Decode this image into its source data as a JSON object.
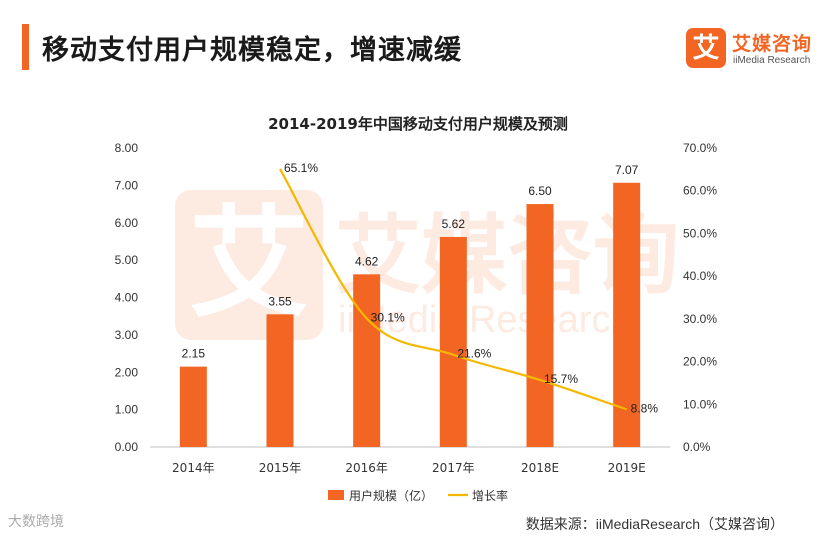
{
  "header": {
    "title": "移动支付用户规模稳定，增速减缓",
    "logo_mark": "艾",
    "logo_cn": "艾媒咨询",
    "logo_en": "iiMedia Research"
  },
  "watermark": {
    "mark": "艾",
    "cn": "艾媒咨询",
    "en": "iiMedia Research"
  },
  "colors": {
    "accent": "#f26522",
    "bar": "#f26522",
    "line": "#f5b800"
  },
  "chart_data": {
    "type": "bar",
    "title": "2014-2019年中国移动支付用户规模及预测",
    "categories": [
      "2014年",
      "2015年",
      "2016年",
      "2017年",
      "2018E",
      "2019E"
    ],
    "series": [
      {
        "name": "用户规模（亿）",
        "type": "bar",
        "axis": "left",
        "values": [
          2.15,
          3.55,
          4.62,
          5.62,
          6.5,
          7.07
        ],
        "labels": [
          "2.15",
          "3.55",
          "4.62",
          "5.62",
          "6.50",
          "7.07"
        ]
      },
      {
        "name": "增长率",
        "type": "line",
        "axis": "right",
        "values": [
          null,
          65.1,
          30.1,
          21.6,
          15.7,
          8.8
        ],
        "labels": [
          "",
          "65.1%",
          "30.1%",
          "21.6%",
          "15.7%",
          "8.8%"
        ]
      }
    ],
    "left_axis": {
      "ticks": [
        "0.00",
        "1.00",
        "2.00",
        "3.00",
        "4.00",
        "5.00",
        "6.00",
        "7.00",
        "8.00"
      ],
      "range": [
        0,
        8
      ]
    },
    "right_axis": {
      "ticks": [
        "0.0%",
        "10.0%",
        "20.0%",
        "30.0%",
        "40.0%",
        "50.0%",
        "60.0%",
        "70.0%"
      ],
      "range": [
        0,
        70
      ]
    },
    "legend": {
      "position": "bottom",
      "items": [
        "用户规模（亿）",
        "增长率"
      ]
    }
  },
  "footer": {
    "source": "数据来源：iiMediaResearch（艾媒咨询）",
    "corner_text": "大数跨境"
  }
}
